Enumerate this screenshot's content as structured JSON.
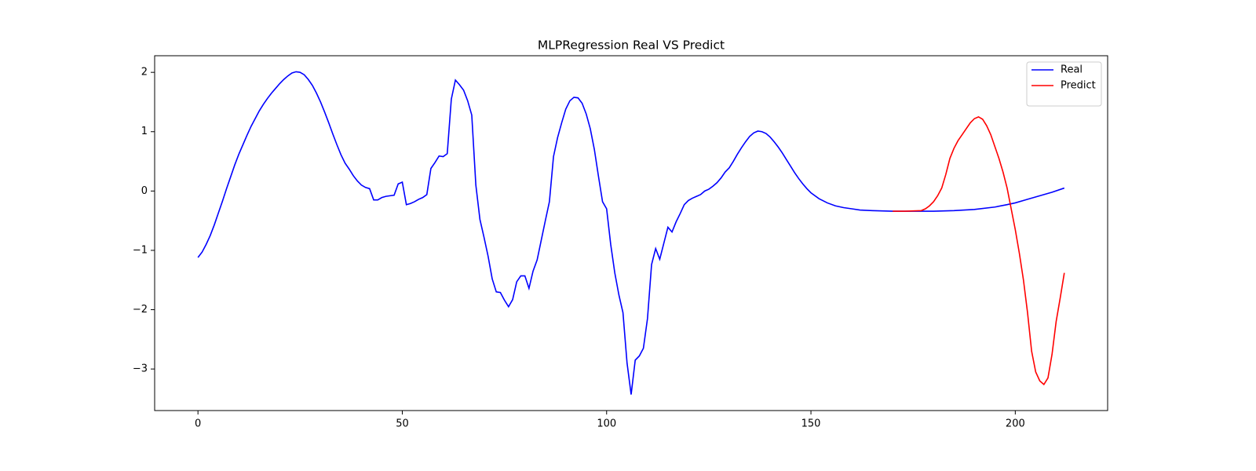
{
  "chart_data": {
    "type": "line",
    "title": "MLPRegression Real VS Predict",
    "series": [
      {
        "name": "Real",
        "color": "#0000ff",
        "x": [
          0,
          1,
          2,
          3,
          4,
          5,
          6,
          7,
          8,
          9,
          10,
          11,
          12,
          13,
          14,
          15,
          16,
          17,
          18,
          19,
          20,
          21,
          22,
          23,
          24,
          25,
          26,
          27,
          28,
          29,
          30,
          31,
          32,
          33,
          34,
          35,
          36,
          37,
          38,
          39,
          40,
          41,
          42,
          43,
          44,
          45,
          46,
          47,
          48,
          49,
          50,
          51,
          52,
          53,
          54,
          55,
          56,
          57,
          58,
          59,
          60,
          61,
          62,
          63,
          64,
          65,
          66,
          67,
          68,
          69,
          70,
          71,
          72,
          73,
          74,
          75,
          76,
          77,
          78,
          79,
          80,
          81,
          82,
          83,
          84,
          85,
          86,
          87,
          88,
          89,
          90,
          91,
          92,
          93,
          94,
          95,
          96,
          97,
          98,
          99,
          100,
          101,
          102,
          103,
          104,
          105,
          106,
          107,
          108,
          109,
          110,
          111,
          112,
          113,
          114,
          115,
          116,
          117,
          118,
          119,
          120,
          121,
          122,
          123,
          124,
          125,
          126,
          127,
          128,
          129,
          130,
          131,
          132,
          133,
          134,
          135,
          136,
          137,
          138,
          139,
          140,
          141,
          142,
          143,
          144,
          145,
          146,
          147,
          148,
          149,
          150,
          152,
          154,
          156,
          158,
          160,
          162,
          165,
          170,
          175,
          180,
          185,
          190,
          195,
          198,
          200,
          203,
          206,
          209,
          212
        ],
        "values": [
          -1.12,
          -1.03,
          -0.9,
          -0.75,
          -0.57,
          -0.37,
          -0.17,
          0.04,
          0.24,
          0.44,
          0.62,
          0.78,
          0.94,
          1.09,
          1.22,
          1.35,
          1.46,
          1.56,
          1.65,
          1.73,
          1.81,
          1.88,
          1.94,
          1.99,
          2.01,
          2.0,
          1.96,
          1.88,
          1.78,
          1.65,
          1.5,
          1.33,
          1.15,
          0.96,
          0.78,
          0.61,
          0.47,
          0.37,
          0.26,
          0.17,
          0.1,
          0.06,
          0.04,
          -0.15,
          -0.15,
          -0.11,
          -0.09,
          -0.08,
          -0.07,
          0.12,
          0.15,
          -0.23,
          -0.21,
          -0.18,
          -0.14,
          -0.11,
          -0.06,
          0.38,
          0.48,
          0.59,
          0.58,
          0.63,
          1.55,
          1.87,
          1.79,
          1.7,
          1.52,
          1.28,
          0.1,
          -0.48,
          -0.78,
          -1.1,
          -1.48,
          -1.7,
          -1.71,
          -1.84,
          -1.95,
          -1.83,
          -1.53,
          -1.43,
          -1.43,
          -1.64,
          -1.35,
          -1.16,
          -0.83,
          -0.5,
          -0.18,
          0.58,
          0.9,
          1.15,
          1.38,
          1.52,
          1.58,
          1.57,
          1.48,
          1.3,
          1.05,
          0.7,
          0.25,
          -0.18,
          -0.3,
          -0.9,
          -1.38,
          -1.75,
          -2.05,
          -2.9,
          -3.43,
          -2.85,
          -2.78,
          -2.65,
          -2.15,
          -1.24,
          -0.97,
          -1.15,
          -0.88,
          -0.61,
          -0.69,
          -0.52,
          -0.38,
          -0.23,
          -0.16,
          -0.12,
          -0.09,
          -0.06,
          0.0,
          0.03,
          0.08,
          0.14,
          0.22,
          0.32,
          0.39,
          0.5,
          0.62,
          0.73,
          0.83,
          0.92,
          0.98,
          1.01,
          1.0,
          0.97,
          0.91,
          0.83,
          0.74,
          0.64,
          0.53,
          0.42,
          0.31,
          0.21,
          0.12,
          0.04,
          -0.03,
          -0.13,
          -0.2,
          -0.25,
          -0.28,
          -0.3,
          -0.32,
          -0.33,
          -0.34,
          -0.34,
          -0.34,
          -0.33,
          -0.31,
          -0.27,
          -0.23,
          -0.2,
          -0.14,
          -0.08,
          -0.02,
          0.05
        ]
      },
      {
        "name": "Predict",
        "color": "#ff0000",
        "x": [
          170,
          173,
          175,
          177,
          178,
          179,
          180,
          181,
          182,
          183,
          184,
          185,
          186,
          187,
          188,
          189,
          190,
          191,
          192,
          193,
          194,
          195,
          196,
          197,
          198,
          199,
          200,
          201,
          202,
          203,
          204,
          205,
          206,
          207,
          208,
          209,
          210,
          211,
          212
        ],
        "values": [
          -0.34,
          -0.34,
          -0.335,
          -0.33,
          -0.3,
          -0.25,
          -0.18,
          -0.08,
          0.05,
          0.28,
          0.55,
          0.72,
          0.85,
          0.95,
          1.05,
          1.15,
          1.22,
          1.25,
          1.21,
          1.1,
          0.95,
          0.75,
          0.55,
          0.32,
          0.05,
          -0.3,
          -0.65,
          -1.05,
          -1.5,
          -2.05,
          -2.7,
          -3.05,
          -3.2,
          -3.26,
          -3.15,
          -2.75,
          -2.2,
          -1.8,
          -1.38
        ]
      }
    ],
    "xlim": [
      -10.6,
      222.6
    ],
    "ylim": [
      -3.7,
      2.28
    ],
    "xticks": [
      0,
      50,
      100,
      150,
      200
    ],
    "yticks": [
      {
        "value": -3,
        "label": "−3"
      },
      {
        "value": -2,
        "label": "−2"
      },
      {
        "value": -1,
        "label": "−1"
      },
      0,
      1,
      2
    ],
    "legend": "upper right"
  }
}
